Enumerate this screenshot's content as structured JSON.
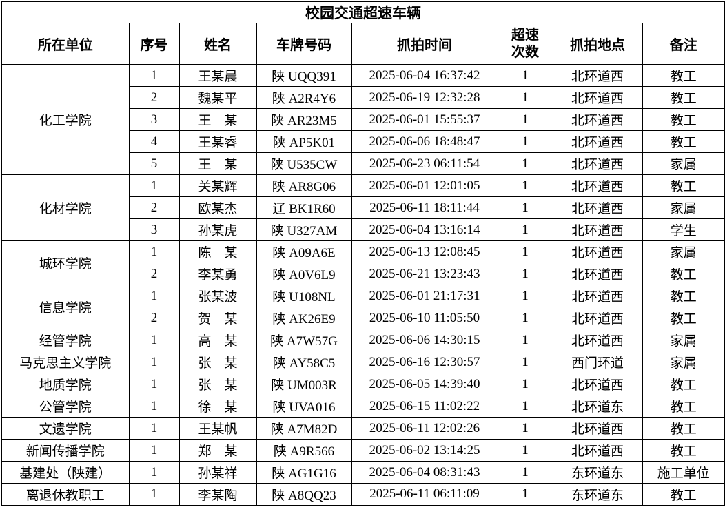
{
  "title": "校园交通超速车辆",
  "columns": [
    "所在单位",
    "序号",
    "姓名",
    "车牌号码",
    "抓拍时间",
    "超速次数",
    "抓拍地点",
    "备注"
  ],
  "colors": {
    "border": "#000000",
    "background": "#ffffff",
    "text": "#000000"
  },
  "groups": [
    {
      "unit": "化工学院",
      "rows": [
        {
          "seq": "1",
          "name": "王某晨",
          "plate": "陕 UQQ391",
          "time": "2025-06-04 16:37:42",
          "count": "1",
          "location": "北环道西",
          "note": "教工"
        },
        {
          "seq": "2",
          "name": "魏某平",
          "plate": "陕 A2R4Y6",
          "time": "2025-06-19 12:32:28",
          "count": "1",
          "location": "北环道西",
          "note": "教工"
        },
        {
          "seq": "3",
          "name": "王　某",
          "plate": "陕 AR23M5",
          "time": "2025-06-01 15:55:37",
          "count": "1",
          "location": "北环道西",
          "note": "教工"
        },
        {
          "seq": "4",
          "name": "王某睿",
          "plate": "陕 AP5K01",
          "time": "2025-06-06 18:48:47",
          "count": "1",
          "location": "北环道西",
          "note": "教工"
        },
        {
          "seq": "5",
          "name": "王　某",
          "plate": "陕 U535CW",
          "time": "2025-06-23 06:11:54",
          "count": "1",
          "location": "北环道西",
          "note": "家属"
        }
      ]
    },
    {
      "unit": "化材学院",
      "rows": [
        {
          "seq": "1",
          "name": "关某辉",
          "plate": "陕 AR8G06",
          "time": "2025-06-01 12:01:05",
          "count": "1",
          "location": "北环道西",
          "note": "教工"
        },
        {
          "seq": "2",
          "name": "欧某杰",
          "plate": "辽 BK1R60",
          "time": "2025-06-11 18:11:44",
          "count": "1",
          "location": "北环道西",
          "note": "家属"
        },
        {
          "seq": "3",
          "name": "孙某虎",
          "plate": "陕 U327AM",
          "time": "2025-06-04 13:16:14",
          "count": "1",
          "location": "北环道西",
          "note": "学生"
        }
      ]
    },
    {
      "unit": "城环学院",
      "rows": [
        {
          "seq": "1",
          "name": "陈　某",
          "plate": "陕 A09A6E",
          "time": "2025-06-13 12:08:45",
          "count": "1",
          "location": "北环道西",
          "note": "家属"
        },
        {
          "seq": "2",
          "name": "李某勇",
          "plate": "陕 A0V6L9",
          "time": "2025-06-21 13:23:43",
          "count": "1",
          "location": "北环道西",
          "note": "教工"
        }
      ]
    },
    {
      "unit": "信息学院",
      "rows": [
        {
          "seq": "1",
          "name": "张某波",
          "plate": "陕 U108NL",
          "time": "2025-06-01 21:17:31",
          "count": "1",
          "location": "北环道西",
          "note": "教工"
        },
        {
          "seq": "2",
          "name": "贺　某",
          "plate": "陕 AK26E9",
          "time": "2025-06-10 11:05:50",
          "count": "1",
          "location": "北环道西",
          "note": "教工"
        }
      ]
    },
    {
      "unit": "经管学院",
      "rows": [
        {
          "seq": "1",
          "name": "高　某",
          "plate": "陕 A7W57G",
          "time": "2025-06-06 14:30:15",
          "count": "1",
          "location": "北环道西",
          "note": "家属"
        }
      ]
    },
    {
      "unit": "马克思主义学院",
      "rows": [
        {
          "seq": "1",
          "name": "张　某",
          "plate": "陕 AY58C5",
          "time": "2025-06-16 12:30:57",
          "count": "1",
          "location": "西门环道",
          "note": "家属"
        }
      ]
    },
    {
      "unit": "地质学院",
      "rows": [
        {
          "seq": "1",
          "name": "张　某",
          "plate": "陕 UM003R",
          "time": "2025-06-05 14:39:40",
          "count": "1",
          "location": "北环道西",
          "note": "教工"
        }
      ]
    },
    {
      "unit": "公管学院",
      "rows": [
        {
          "seq": "1",
          "name": "徐　某",
          "plate": "陕 UVA016",
          "time": "2025-06-15 11:02:22",
          "count": "1",
          "location": "北环道东",
          "note": "教工"
        }
      ]
    },
    {
      "unit": "文遗学院",
      "rows": [
        {
          "seq": "1",
          "name": "王某帆",
          "plate": "陕 A7M82D",
          "time": "2025-06-11 12:02:26",
          "count": "1",
          "location": "北环道西",
          "note": "教工"
        }
      ]
    },
    {
      "unit": "新闻传播学院",
      "rows": [
        {
          "seq": "1",
          "name": "郑　某",
          "plate": "陕 A9R566",
          "time": "2025-06-02 13:14:25",
          "count": "1",
          "location": "北环道西",
          "note": "教工"
        }
      ]
    },
    {
      "unit": "基建处（陕建）",
      "rows": [
        {
          "seq": "1",
          "name": "孙某祥",
          "plate": "陕 AG1G16",
          "time": "2025-06-04 08:31:43",
          "count": "1",
          "location": "东环道东",
          "note": "施工单位"
        }
      ]
    },
    {
      "unit": "离退休教职工",
      "rows": [
        {
          "seq": "1",
          "name": "李某陶",
          "plate": "陕 A8QQ23",
          "time": "2025-06-11 06:11:09",
          "count": "1",
          "location": "东环道东",
          "note": "教工"
        }
      ]
    }
  ]
}
